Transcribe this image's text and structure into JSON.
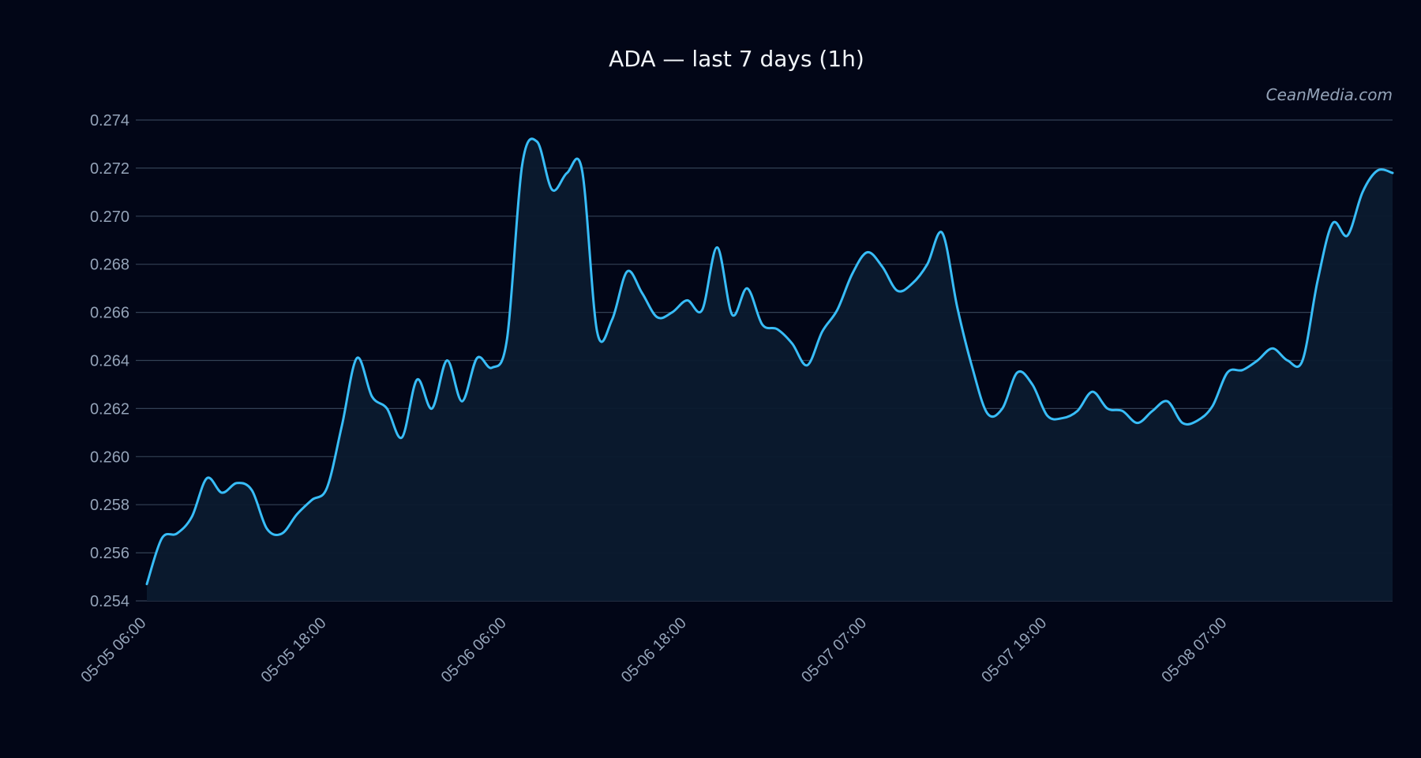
{
  "chart_data": {
    "type": "line",
    "title": "ADA — last 7 days (1h)",
    "watermark": "CeanMedia.com",
    "xlabel": "",
    "ylabel": "",
    "ylim": [
      0.254,
      0.274
    ],
    "yticks": [
      "0.254",
      "0.256",
      "0.258",
      "0.260",
      "0.262",
      "0.264",
      "0.266",
      "0.268",
      "0.270",
      "0.272",
      "0.274"
    ],
    "xticks": [
      {
        "index": 0,
        "label": "05-05 06:00"
      },
      {
        "index": 12,
        "label": "05-05 18:00"
      },
      {
        "index": 24,
        "label": "05-06 06:00"
      },
      {
        "index": 36,
        "label": "05-06 18:00"
      },
      {
        "index": 48,
        "label": "05-07 07:00"
      },
      {
        "index": 60,
        "label": "05-07 19:00"
      },
      {
        "index": 72,
        "label": "05-08 07:00"
      }
    ],
    "grid": true,
    "colors": {
      "line": "#38bdf8",
      "fill": "#0b1a2e",
      "background": "#020617"
    },
    "series": [
      {
        "values": [
          0.2547,
          0.2566,
          0.2568,
          0.2575,
          0.2591,
          0.2585,
          0.2589,
          0.2586,
          0.257,
          0.2568,
          0.2576,
          0.2582,
          0.2587,
          0.2613,
          0.2641,
          0.2625,
          0.262,
          0.2608,
          0.2632,
          0.262,
          0.264,
          0.2623,
          0.2641,
          0.2637,
          0.2649,
          0.2721,
          0.2731,
          0.2711,
          0.2718,
          0.2719,
          0.2652,
          0.2657,
          0.2677,
          0.2668,
          0.2658,
          0.266,
          0.2665,
          0.2661,
          0.2687,
          0.2659,
          0.267,
          0.2655,
          0.2653,
          0.2647,
          0.2638,
          0.2652,
          0.2661,
          0.2676,
          0.2685,
          0.2679,
          0.2669,
          0.2672,
          0.268,
          0.2693,
          0.2662,
          0.2637,
          0.2618,
          0.262,
          0.2635,
          0.263,
          0.2617,
          0.2616,
          0.2619,
          0.2627,
          0.262,
          0.2619,
          0.2614,
          0.2619,
          0.2623,
          0.2614,
          0.2615,
          0.2621,
          0.2635,
          0.2636,
          0.264,
          0.2645,
          0.264,
          0.264,
          0.2673,
          0.2697,
          0.2692,
          0.271,
          0.2719,
          0.2718
        ]
      }
    ]
  }
}
